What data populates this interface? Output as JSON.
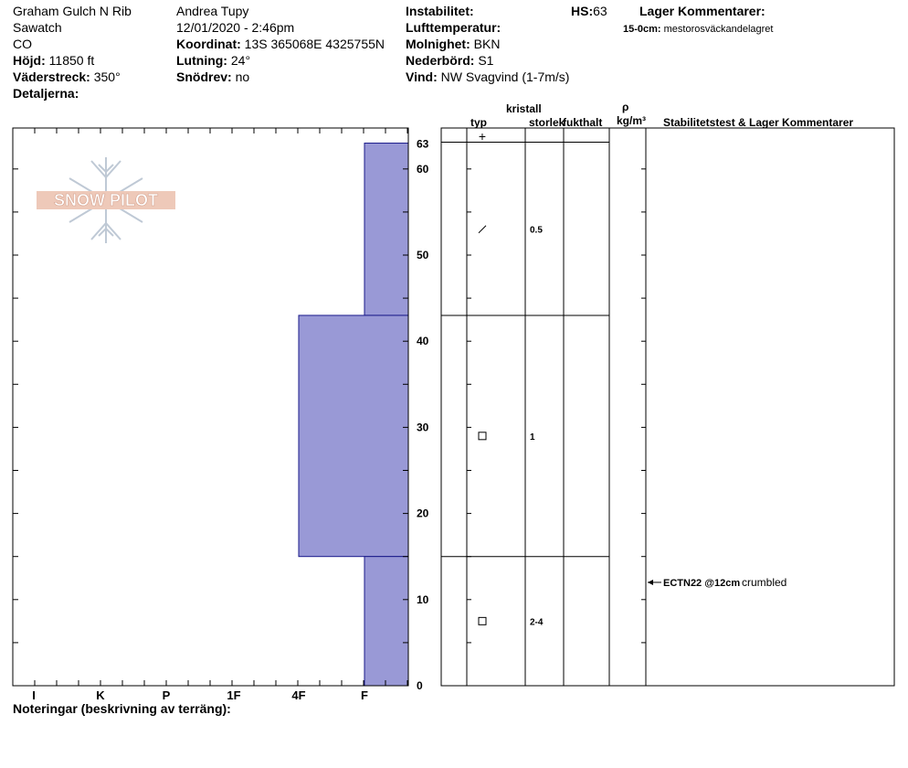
{
  "header": {
    "location": "Graham Gulch N Rib",
    "range": "Sawatch",
    "state": "CO",
    "elevation_label": "Höjd:",
    "elevation_value": "11850 ft",
    "aspect_label": "Väderstreck:",
    "aspect_value": "350°",
    "details_label": "Detaljerna:",
    "observer": "Andrea Tupy",
    "datetime": "12/01/2020 - 2:46pm",
    "coord_label": "Koordinat:",
    "coord_value": "13S 365068E 4325755N",
    "slope_label": "Lutning:",
    "slope_value": "24°",
    "drift_label": "Snödrev:",
    "drift_value": "no",
    "instability_label": "Instabilitet:",
    "hs_label": "HS:",
    "hs_value": "63",
    "air_temp_label": "Lufttemperatur:",
    "cloud_label": "Molnighet:",
    "cloud_value": "BKN",
    "precip_label": "Nederbörd:",
    "precip_value": "S1",
    "wind_label": "Vind:",
    "wind_value": "NW Svagvind (1-7m/s)",
    "layer_comments_label": "Lager Kommentarer:",
    "layer_comment_range": "15-0cm:",
    "layer_comment_text": "mestorosväckandelagret"
  },
  "columns": {
    "crystal": "kristall",
    "type": "typ",
    "size": "storlek",
    "moisture": "fukthalt",
    "rho": "ρ",
    "density_unit": "kg/m³",
    "stability": "Stabilitetstest & Lager Kommentarer"
  },
  "notes_label": "Noteringar (beskrivning av terräng):",
  "logo_text": "SNOW PILOT",
  "chart_data": {
    "type": "bar",
    "orientation": "horizontal-step",
    "title": "",
    "xlabel": "",
    "ylabel": "",
    "y_range": [
      0,
      63
    ],
    "y_ticks": [
      0,
      10,
      20,
      30,
      40,
      50,
      60
    ],
    "y_top_label": "63",
    "hardness_scale": [
      "I",
      "K",
      "P",
      "1F",
      "4F",
      "F"
    ],
    "hardness_levels": {
      "F": 1,
      "4F": 2,
      "1F": 3,
      "P": 4,
      "K": 5,
      "I": 6
    },
    "fill_color": "#9999d6",
    "layers": [
      {
        "top": 63,
        "bottom": 43,
        "hardness": "F",
        "grain_symbol": "/",
        "grain_size": "0.5"
      },
      {
        "top": 43,
        "bottom": 15,
        "hardness": "4F",
        "grain_symbol": "□",
        "grain_size": "1"
      },
      {
        "top": 15,
        "bottom": 0,
        "hardness": "F",
        "grain_symbol": "□",
        "grain_size": "2-4"
      }
    ],
    "surface_symbol": "+",
    "tests": [
      {
        "depth": 12,
        "code": "ECTN22 @12cm",
        "comment": "crumbled"
      }
    ]
  }
}
